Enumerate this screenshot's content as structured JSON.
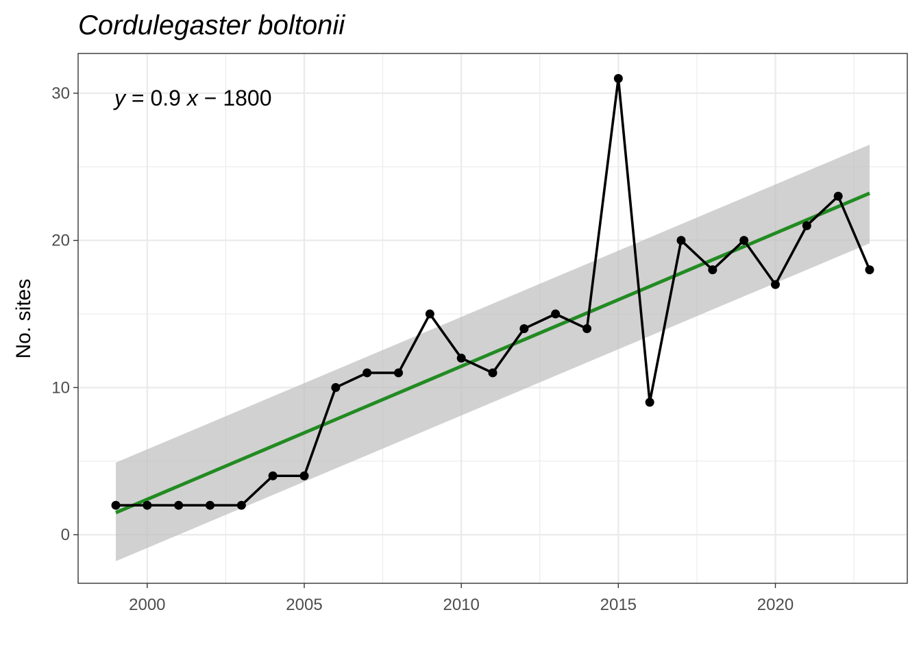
{
  "chart_data": {
    "type": "line",
    "title": "Cordulegaster boltonii",
    "xlabel": "",
    "ylabel": "No. sites",
    "xlim": [
      1997.8,
      2024.2
    ],
    "ylim": [
      -3.3,
      32.7
    ],
    "x_ticks": [
      "2000",
      "2005",
      "2010",
      "2015",
      "2020"
    ],
    "y_ticks": [
      "0",
      "10",
      "20",
      "30"
    ],
    "grid": true,
    "equation": {
      "y": "y",
      "eq1": " = 0.9 ",
      "x": "x",
      "eq2": " − 1800"
    },
    "series": [
      {
        "x": [
          1999,
          2000,
          2001,
          2002,
          2003,
          2004,
          2005,
          2006,
          2007,
          2008,
          2009,
          2010,
          2011,
          2012,
          2013,
          2014,
          2015,
          2016,
          2017,
          2018,
          2019,
          2020,
          2021,
          2022,
          2023
        ],
        "values": [
          2,
          2,
          2,
          2,
          2,
          4,
          4,
          10,
          11,
          11,
          15,
          12,
          11,
          14,
          15,
          14,
          31,
          9,
          20,
          18,
          20,
          17,
          21,
          23,
          18
        ]
      }
    ],
    "trend": {
      "x": [
        1999,
        2023
      ],
      "y": [
        1.5,
        23.2
      ],
      "ci_lower": [
        -1.8,
        19.8
      ],
      "ci_upper": [
        4.9,
        26.5
      ]
    },
    "colors": {
      "line": "#000000",
      "trend": "#228B22",
      "ribbon": "#bdbdbd",
      "grid": "#ebebeb",
      "border": "#333333"
    }
  }
}
